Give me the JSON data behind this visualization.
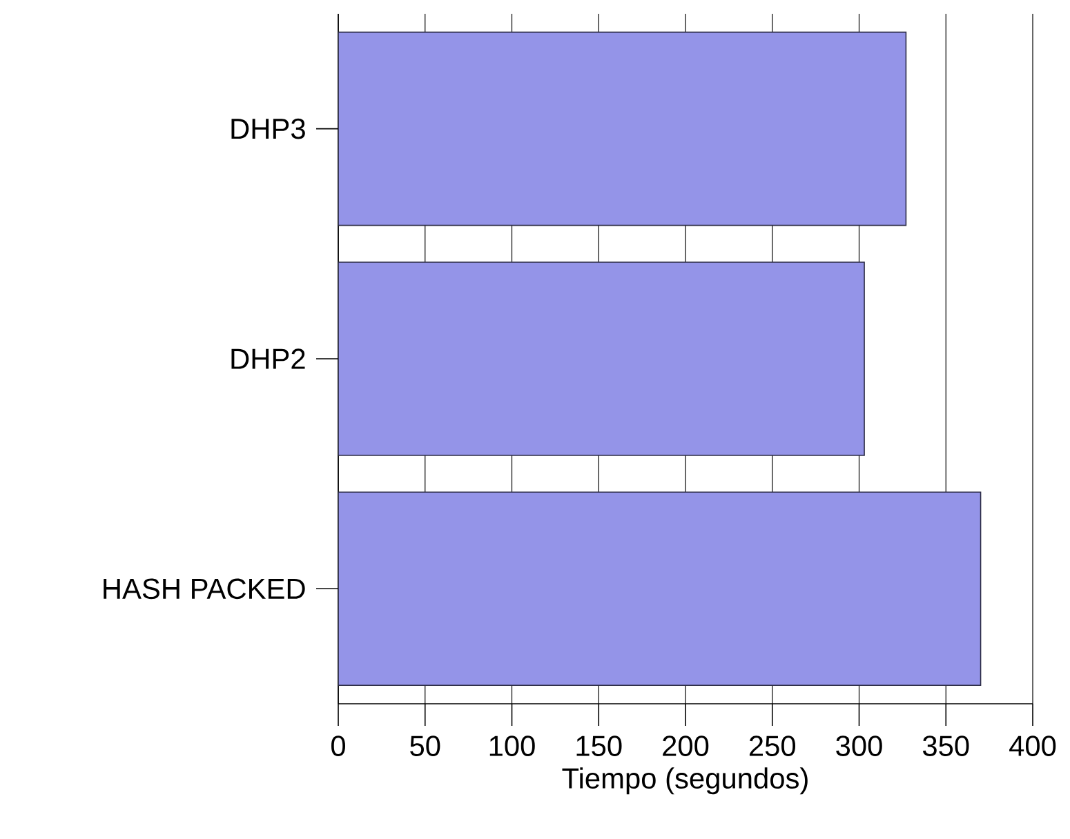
{
  "chart_data": {
    "type": "bar",
    "orientation": "horizontal",
    "xlabel": "Tiempo (segundos)",
    "categories": [
      "DHP3",
      "DHP2",
      "HASH PACKED"
    ],
    "values": [
      327,
      303,
      370
    ],
    "color": "#9494e8",
    "xlim": [
      0,
      400
    ],
    "xticks": [
      0,
      50,
      100,
      150,
      200,
      250,
      300,
      350,
      400
    ],
    "grid": "x"
  }
}
